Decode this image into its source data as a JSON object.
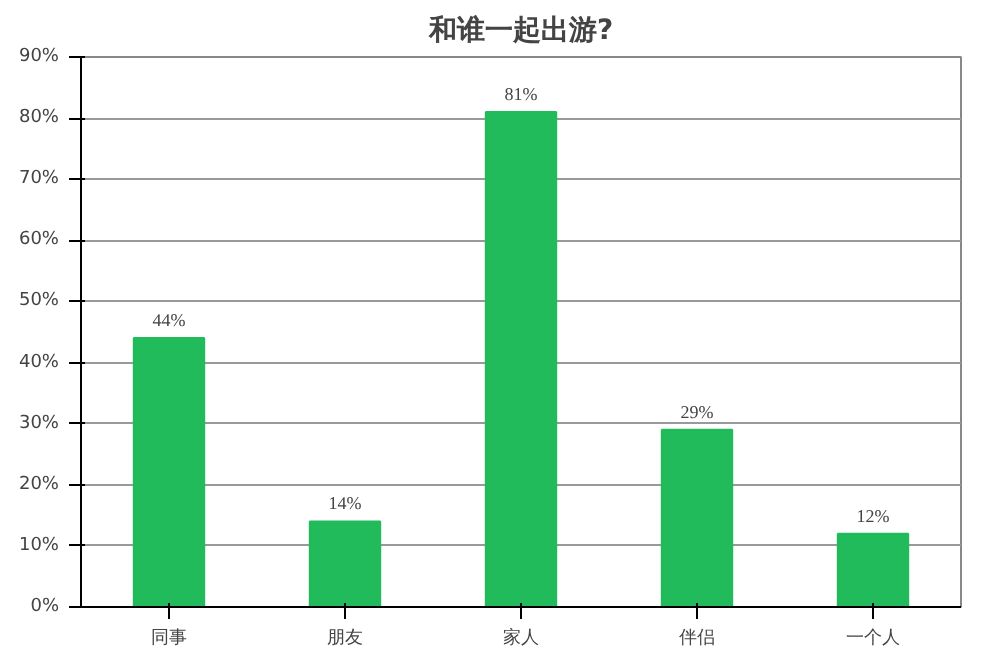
{
  "chart_data": {
    "type": "bar",
    "title": "和谁一起出游?",
    "categories": [
      "同事",
      "朋友",
      "家人",
      "伴侣",
      "一个人"
    ],
    "values": [
      44,
      14,
      81,
      29,
      12
    ],
    "value_labels": [
      "44%",
      "14%",
      "81%",
      "29%",
      "12%"
    ],
    "color": "#22bb5b",
    "ylim": [
      0,
      90
    ],
    "yticks": [
      {
        "value": 0,
        "label": "0%"
      },
      {
        "value": 10,
        "label": "10%"
      },
      {
        "value": 20,
        "label": "20%"
      },
      {
        "value": 30,
        "label": "30%"
      },
      {
        "value": 40,
        "label": "40%"
      },
      {
        "value": 50,
        "label": "50%"
      },
      {
        "value": 60,
        "label": "60%"
      },
      {
        "value": 70,
        "label": "70%"
      },
      {
        "value": 80,
        "label": "80%"
      },
      {
        "value": 90,
        "label": "90%"
      }
    ],
    "grid": "y"
  }
}
